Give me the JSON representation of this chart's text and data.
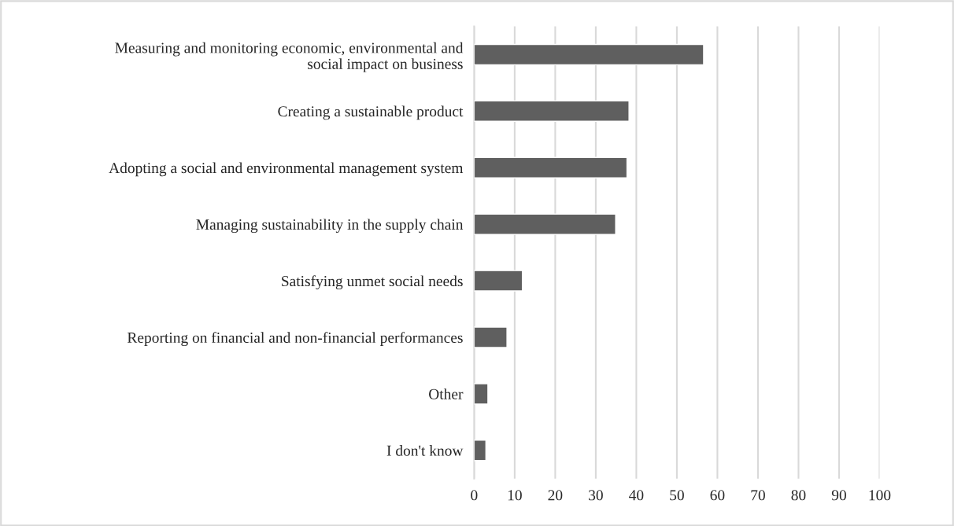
{
  "chart_data": {
    "type": "bar",
    "orientation": "horizontal",
    "categories": [
      "Measuring and monitoring economic, environmental and\nsocial impact on business",
      "Creating a sustainable product",
      "Adopting a social and environmental management system",
      "Managing sustainability in the supply chain",
      "Satisfying unmet social needs",
      "Reporting on financial and non-financial performances",
      "Other",
      "I don't know"
    ],
    "values": [
      56.6,
      38.2,
      37.7,
      34.9,
      11.9,
      8.1,
      3.4,
      2.9
    ],
    "color": "#5f5f5f",
    "xlim": [
      0,
      100
    ],
    "xticks": [
      0,
      10,
      20,
      30,
      40,
      50,
      60,
      70,
      80,
      90,
      100
    ],
    "grid": "x",
    "legend": false
  }
}
